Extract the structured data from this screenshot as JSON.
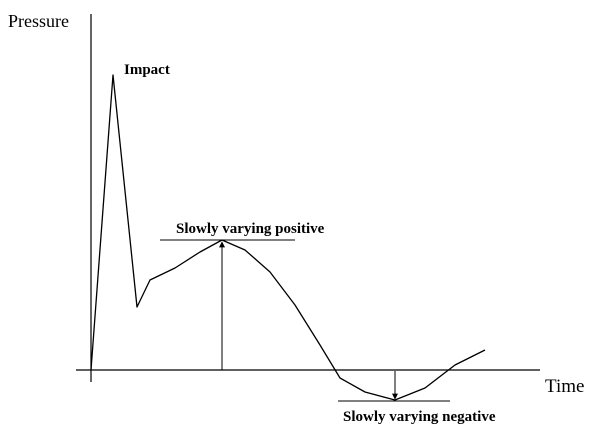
{
  "axes": {
    "y_label": "Pressure",
    "x_label": "Time"
  },
  "annotations": {
    "impact": "Impact",
    "positive": "Slowly varying positive",
    "negative": "Slowly varying negative"
  }
}
